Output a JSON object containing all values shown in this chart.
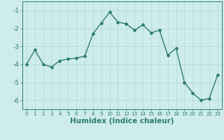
{
  "x": [
    0,
    1,
    2,
    3,
    4,
    5,
    6,
    7,
    8,
    9,
    10,
    11,
    12,
    13,
    14,
    15,
    16,
    17,
    18,
    19,
    20,
    21,
    22,
    23
  ],
  "y": [
    -4.0,
    -3.2,
    -4.0,
    -4.15,
    -3.8,
    -3.7,
    -3.65,
    -3.55,
    -2.3,
    -1.7,
    -1.1,
    -1.65,
    -1.75,
    -2.1,
    -1.8,
    -2.25,
    -2.1,
    -3.5,
    -3.1,
    -5.0,
    -5.6,
    -6.0,
    -5.9,
    -4.6
  ],
  "line_color": "#2e7d6e",
  "marker": "D",
  "marker_size": 2,
  "linewidth": 1.0,
  "xlabel": "Humidex (Indice chaleur)",
  "xlim": [
    -0.5,
    23.5
  ],
  "ylim": [
    -6.5,
    -0.5
  ],
  "yticks": [
    -6,
    -5,
    -4,
    -3,
    -2,
    -1
  ],
  "xticks": [
    0,
    1,
    2,
    3,
    4,
    5,
    6,
    7,
    8,
    9,
    10,
    11,
    12,
    13,
    14,
    15,
    16,
    17,
    18,
    19,
    20,
    21,
    22,
    23
  ],
  "bg_color": "#ceecea",
  "grid_color": "#aed8d4",
  "tick_fontsize": 6,
  "xlabel_fontsize": 7.5
}
